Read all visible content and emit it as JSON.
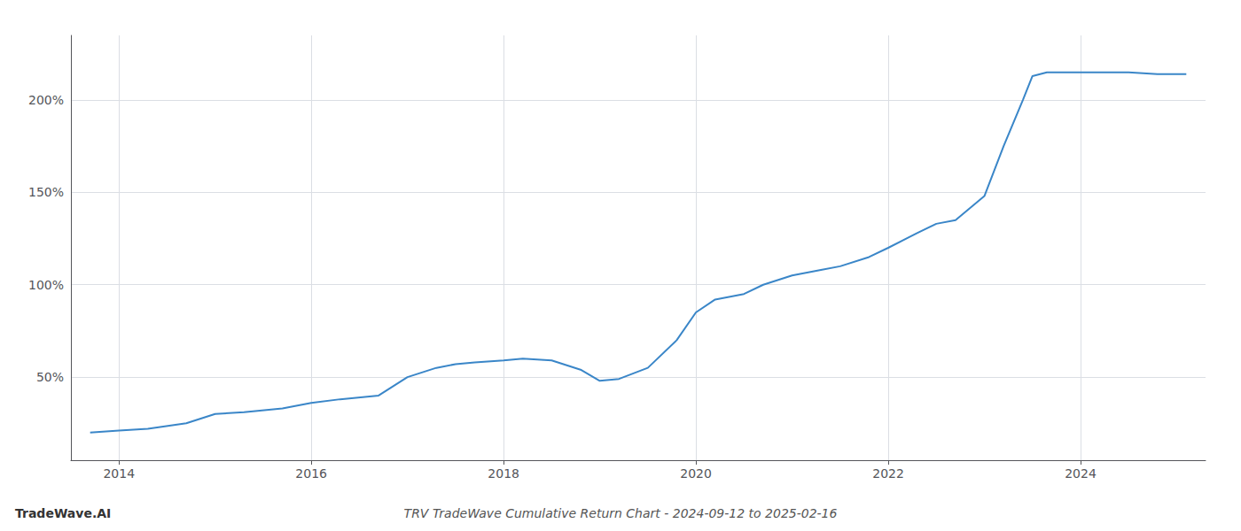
{
  "chart_data": {
    "type": "line",
    "title": "TRV TradeWave Cumulative Return Chart - 2024-09-12 to 2025-02-16",
    "annotations": [
      "TradeWave.AI"
    ],
    "x": [
      2013.7,
      2014.0,
      2014.3,
      2014.7,
      2015.0,
      2015.3,
      2015.7,
      2016.0,
      2016.3,
      2016.7,
      2017.0,
      2017.3,
      2017.5,
      2017.7,
      2018.0,
      2018.2,
      2018.5,
      2018.8,
      2019.0,
      2019.2,
      2019.5,
      2019.8,
      2020.0,
      2020.2,
      2020.5,
      2020.7,
      2021.0,
      2021.3,
      2021.5,
      2021.8,
      2022.0,
      2022.3,
      2022.5,
      2022.7,
      2023.0,
      2023.2,
      2023.4,
      2023.5,
      2023.65,
      2024.0,
      2024.2,
      2024.5,
      2024.8,
      2025.1
    ],
    "values": [
      20,
      21,
      22,
      25,
      30,
      31,
      33,
      36,
      38,
      40,
      50,
      55,
      57,
      58,
      59,
      60,
      59,
      54,
      48,
      49,
      55,
      70,
      85,
      92,
      95,
      100,
      105,
      108,
      110,
      115,
      120,
      128,
      133,
      135,
      148,
      175,
      200,
      213,
      215,
      215,
      215,
      215,
      214,
      214
    ],
    "color": "#3a86c8",
    "xlim": [
      2013.5,
      2025.3
    ],
    "ylim": [
      5,
      235
    ],
    "xticks": [
      2014,
      2016,
      2018,
      2020,
      2022,
      2024
    ],
    "yticks": [
      {
        "value": 50,
        "label": "50%"
      },
      {
        "value": 100,
        "label": "100%"
      },
      {
        "value": 150,
        "label": "150%"
      },
      {
        "value": 200,
        "label": "200%"
      }
    ],
    "grid": true
  }
}
